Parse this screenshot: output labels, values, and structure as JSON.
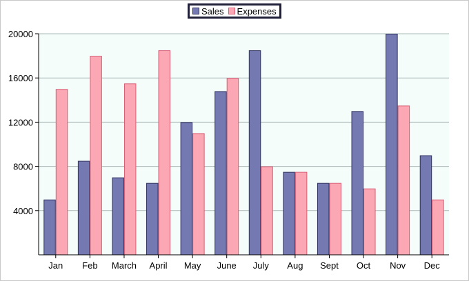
{
  "chart_data": {
    "type": "bar",
    "title": "",
    "xlabel": "",
    "ylabel": "",
    "categories": [
      "Jan",
      "Feb",
      "March",
      "April",
      "May",
      "June",
      "July",
      "Aug",
      "Sept",
      "Oct",
      "Nov",
      "Dec"
    ],
    "series": [
      {
        "name": "Sales",
        "color": "#7479b1",
        "values": [
          5000,
          8500,
          7000,
          6500,
          12000,
          14800,
          18500,
          7500,
          6500,
          13000,
          20000,
          9000
        ]
      },
      {
        "name": "Expenses",
        "color": "#fba7b4",
        "values": [
          15000,
          18000,
          15500,
          18500,
          11000,
          16000,
          8000,
          7500,
          6500,
          6000,
          13500,
          5000
        ]
      }
    ],
    "ylim": [
      0,
      20000
    ],
    "yticks": [
      4000,
      8000,
      12000,
      16000,
      20000
    ],
    "grid": true,
    "legend_position": "top-center",
    "plot_background": "#f5fdfb",
    "grid_color": "#a9b8b6"
  }
}
